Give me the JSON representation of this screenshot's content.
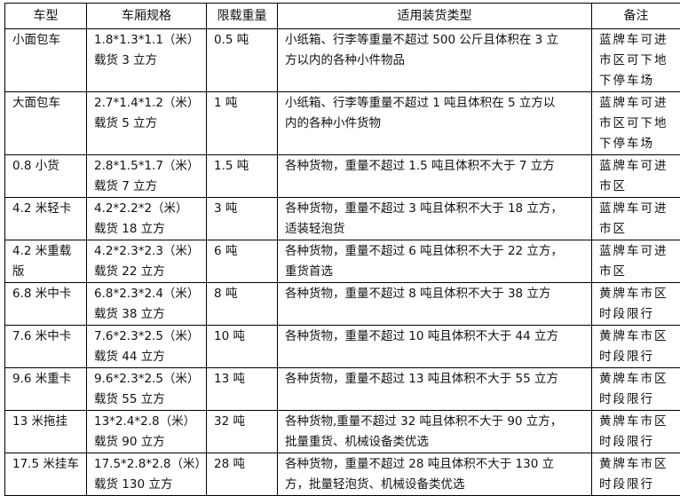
{
  "headers": [
    "车型",
    "车厢规格",
    "限载重量",
    "适用装货类型",
    "备注"
  ],
  "rows": [
    {
      "type": [
        "小面包车"
      ],
      "spec": [
        "1.8*1.3*1.1（米）",
        "载货 3 立方"
      ],
      "load": [
        "0.5 吨"
      ],
      "cargo": [
        "小纸箱、行李等重量不超过 500 公斤且体积在 3 立",
        "方以内的各种小件物品"
      ],
      "note": [
        "蓝牌车可进",
        "市区可下地",
        "下停车场"
      ]
    },
    {
      "type": [
        "大面包车"
      ],
      "spec": [
        "2.7*1.4*1.2（米）",
        "载货 5 立方"
      ],
      "load": [
        "1 吨"
      ],
      "cargo": [
        "小纸箱、行李等重量不超过 1 吨且体积在 5 立方以",
        "内的各种小件货物"
      ],
      "note": [
        "蓝牌车可进",
        "市区可下地",
        "下停车场"
      ]
    },
    {
      "type": [
        "0.8 小货"
      ],
      "spec": [
        "2.8*1.5*1.7（米）",
        "载货 7 立方"
      ],
      "load": [
        "1.5 吨"
      ],
      "cargo": [
        "各种货物，重量不超过 1.5 吨且体积不大于 7 立方"
      ],
      "note": [
        "蓝牌车可进",
        "市区"
      ]
    },
    {
      "type": [
        "4.2 米轻卡"
      ],
      "spec": [
        "4.2*2.2*2（米）",
        "载货 18 立方"
      ],
      "load": [
        "3 吨"
      ],
      "cargo": [
        "各种货物，重量不超过 3 吨且体积不大于 18 立方，",
        "适装轻泡货"
      ],
      "note": [
        "蓝牌车可进",
        "市区"
      ]
    },
    {
      "type": [
        "4.2 米重载",
        "版"
      ],
      "spec": [
        "4.2*2.3*2.3（米）",
        "载货 22 立方"
      ],
      "load": [
        "6 吨"
      ],
      "cargo": [
        "各种货物，重量不超过 6 吨且体积不大于 22 立方，",
        "重货首选"
      ],
      "note": [
        "蓝牌车可进",
        "市区"
      ]
    },
    {
      "type": [
        "6.8 米中卡"
      ],
      "spec": [
        "6.8*2.3*2.4（米）",
        "载货 38 立方"
      ],
      "load": [
        "8 吨"
      ],
      "cargo": [
        "各种货物，重量不超过 8 吨且体积不大于 38 立方"
      ],
      "note": [
        "黄牌车市区",
        "时段限行"
      ]
    },
    {
      "type": [
        "7.6 米中卡"
      ],
      "spec": [
        "7.6*2.3*2.5（米）",
        "载货 44 立方"
      ],
      "load": [
        "10 吨"
      ],
      "cargo": [
        "各种货物，重量不超过 10 吨且体积不大于 44 立方"
      ],
      "note": [
        "黄牌车市区",
        "时段限行"
      ]
    },
    {
      "type": [
        "9.6 米重卡"
      ],
      "spec": [
        "9.6*2.3*2.5（米）",
        "载货 55 立方"
      ],
      "load": [
        "13 吨"
      ],
      "cargo": [
        "各种货物，重量不超过 13 吨且体积不大于 55 立方"
      ],
      "note": [
        "黄牌车市区",
        "时段限行"
      ]
    },
    {
      "type": [
        "13 米拖挂"
      ],
      "spec": [
        "13*2.4*2.8（米）",
        "载货 90 立方"
      ],
      "load": [
        "32 吨"
      ],
      "cargo": [
        "各种货物,重量不超过 32 吨且体积不大于 90 立方，",
        "批量重货、机械设备类优选"
      ],
      "note": [
        "黄牌车市区",
        "时段限行"
      ]
    },
    {
      "type": [
        "17.5 米挂车"
      ],
      "spec": [
        "17.5*2.8*2.8（米）",
        "载货 130 立方"
      ],
      "load": [
        "28 吨"
      ],
      "cargo": [
        "各种货物，重量不超过 28 吨且体积不大于 130 立",
        "方，批量轻泡货、机械设备类优选"
      ],
      "note": [
        "黄牌车市区",
        "时段限行"
      ]
    }
  ]
}
